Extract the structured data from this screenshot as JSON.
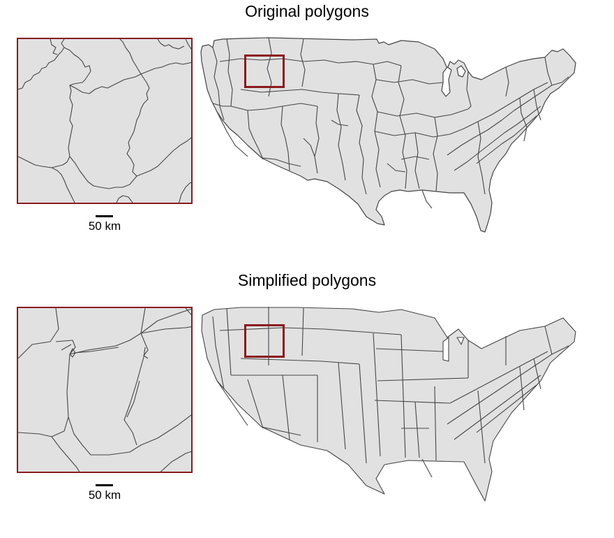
{
  "panels": [
    {
      "title": "Original polygons",
      "scale_label": "50 km"
    },
    {
      "title": "Simplified polygons",
      "scale_label": "50 km"
    }
  ],
  "colors": {
    "fill": "#e1e1e1",
    "boundary": "#454545",
    "highlight": "#8b1a1f"
  }
}
